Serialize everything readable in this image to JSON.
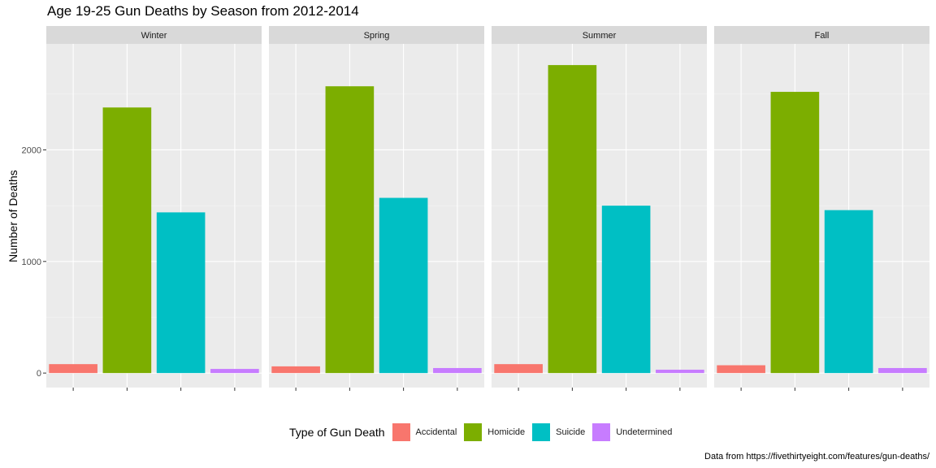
{
  "chart_data": {
    "type": "bar",
    "title": "Age 19-25 Gun Deaths by Season from 2012-2014",
    "ylabel": "Number of Deaths",
    "xlabel": "",
    "caption": "Data from https://fivethirtyeight.com/features/gun-deaths/",
    "ylim": [
      -130,
      2950
    ],
    "yticks": [
      0,
      1000,
      2000
    ],
    "grid": true,
    "legend_position": "bottom",
    "legend_title": "Type of Gun Death",
    "categories": [
      "Accidental",
      "Homicide",
      "Suicide",
      "Undetermined"
    ],
    "colors": [
      "#F8766D",
      "#7CAE00",
      "#00BFC4",
      "#C77CFF"
    ],
    "facets": [
      {
        "name": "Winter",
        "values": [
          80,
          2380,
          1440,
          37
        ]
      },
      {
        "name": "Spring",
        "values": [
          60,
          2570,
          1570,
          45
        ]
      },
      {
        "name": "Summer",
        "values": [
          80,
          2760,
          1500,
          30
        ]
      },
      {
        "name": "Fall",
        "values": [
          70,
          2520,
          1460,
          45
        ]
      }
    ]
  }
}
